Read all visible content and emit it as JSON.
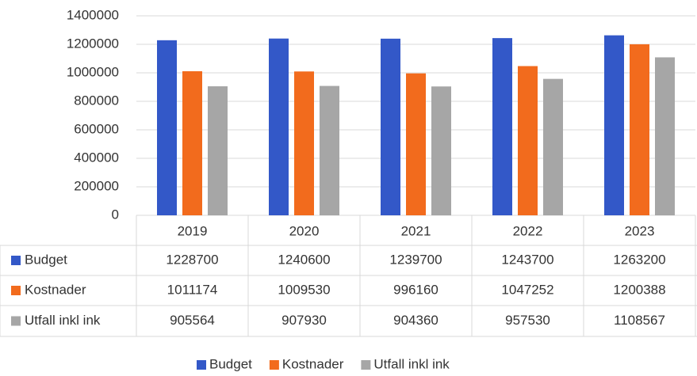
{
  "chart_data": {
    "type": "bar",
    "categories": [
      "2019",
      "2020",
      "2021",
      "2022",
      "2023"
    ],
    "series": [
      {
        "name": "Budget",
        "color": "#3358c8",
        "values": [
          1228700,
          1240600,
          1239700,
          1243700,
          1263200
        ]
      },
      {
        "name": "Kostnader",
        "color": "#f26b1d",
        "values": [
          1011174,
          1009530,
          996160,
          1047252,
          1200388
        ]
      },
      {
        "name": "Utfall inkl ink",
        "color": "#a6a6a6",
        "values": [
          905564,
          907930,
          904360,
          957530,
          1108567
        ]
      }
    ],
    "ylim": [
      0,
      1400000
    ],
    "yticks": [
      0,
      200000,
      400000,
      600000,
      800000,
      1000000,
      1200000,
      1400000
    ],
    "grid": true,
    "legend": "bottom"
  }
}
